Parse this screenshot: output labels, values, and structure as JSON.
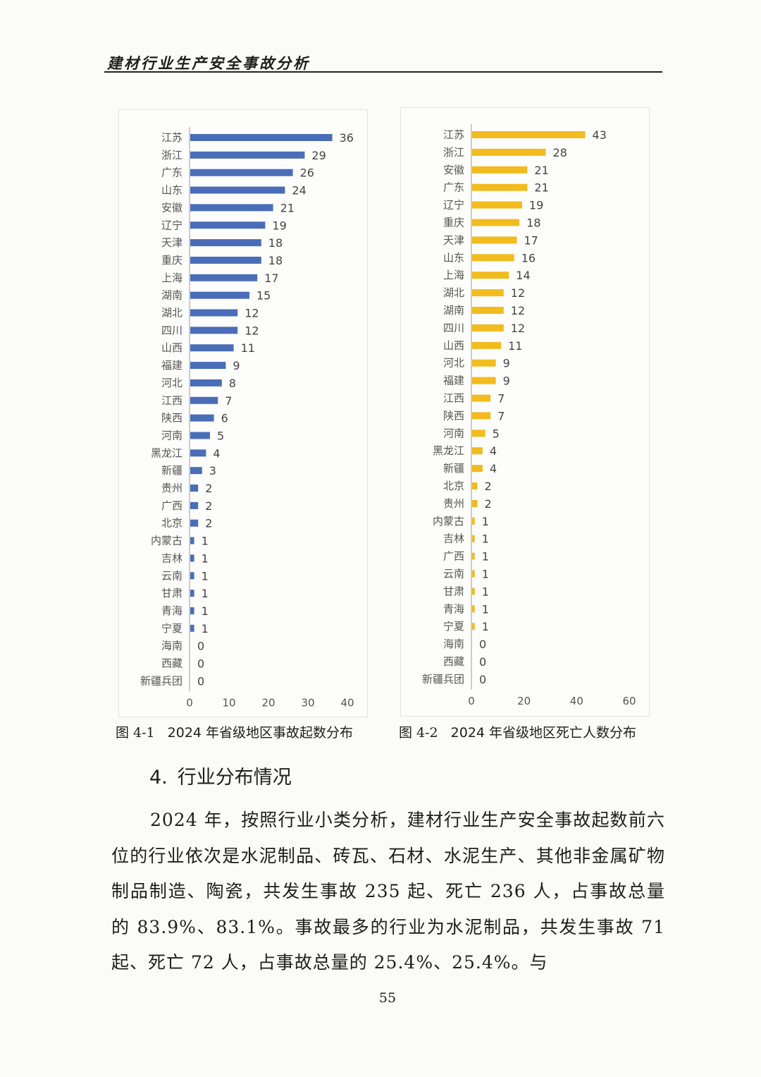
{
  "header": {
    "title": "建材行业生产安全事故分析"
  },
  "chart_data": [
    {
      "type": "bar",
      "orientation": "horizontal",
      "categories": [
        "江苏",
        "浙江",
        "广东",
        "山东",
        "安徽",
        "辽宁",
        "天津",
        "重庆",
        "上海",
        "湖南",
        "湖北",
        "四川",
        "山西",
        "福建",
        "河北",
        "江西",
        "陕西",
        "河南",
        "黑龙江",
        "新疆",
        "贵州",
        "广西",
        "北京",
        "内蒙古",
        "吉林",
        "云南",
        "甘肃",
        "青海",
        "宁夏",
        "海南",
        "西藏",
        "新疆兵团"
      ],
      "values": [
        36,
        29,
        26,
        24,
        21,
        19,
        18,
        18,
        17,
        15,
        12,
        12,
        11,
        9,
        8,
        7,
        6,
        5,
        4,
        3,
        2,
        2,
        2,
        1,
        1,
        1,
        1,
        1,
        1,
        0,
        0,
        0
      ],
      "xlim": [
        0,
        40
      ],
      "xticks": [
        0,
        10,
        20,
        30,
        40
      ],
      "color": "#4a6db8",
      "caption_num": "图 4-1",
      "caption_text": "2024 年省级地区事故起数分布"
    },
    {
      "type": "bar",
      "orientation": "horizontal",
      "categories": [
        "江苏",
        "浙江",
        "安徽",
        "广东",
        "辽宁",
        "重庆",
        "天津",
        "山东",
        "上海",
        "湖北",
        "湖南",
        "四川",
        "山西",
        "河北",
        "福建",
        "江西",
        "陕西",
        "河南",
        "黑龙江",
        "新疆",
        "北京",
        "贵州",
        "内蒙古",
        "吉林",
        "广西",
        "云南",
        "甘肃",
        "青海",
        "宁夏",
        "海南",
        "西藏",
        "新疆兵团"
      ],
      "values": [
        43,
        28,
        21,
        21,
        19,
        18,
        17,
        16,
        14,
        12,
        12,
        12,
        11,
        9,
        9,
        7,
        7,
        5,
        4,
        4,
        2,
        2,
        1,
        1,
        1,
        1,
        1,
        1,
        1,
        0,
        0,
        0
      ],
      "xlim": [
        0,
        60
      ],
      "xticks": [
        0,
        20,
        40,
        60
      ],
      "color": "#f2bb1e",
      "caption_num": "图 4-2",
      "caption_text": "2024 年省级地区死亡人数分布"
    }
  ],
  "section": {
    "number": "4.",
    "title": "行业分布情况"
  },
  "body": {
    "paragraph": "2024 年，按照行业小类分析，建材行业生产安全事故起数前六位的行业依次是水泥制品、砖瓦、石材、水泥生产、其他非金属矿物制品制造、陶瓷，共发生事故 235 起、死亡 236 人，占事故总量的 83.9%、83.1%。事故最多的行业为水泥制品，共发生事故 71 起、死亡 72 人，占事故总量的 25.4%、25.4%。与"
  },
  "footer": {
    "page_number": "55"
  }
}
